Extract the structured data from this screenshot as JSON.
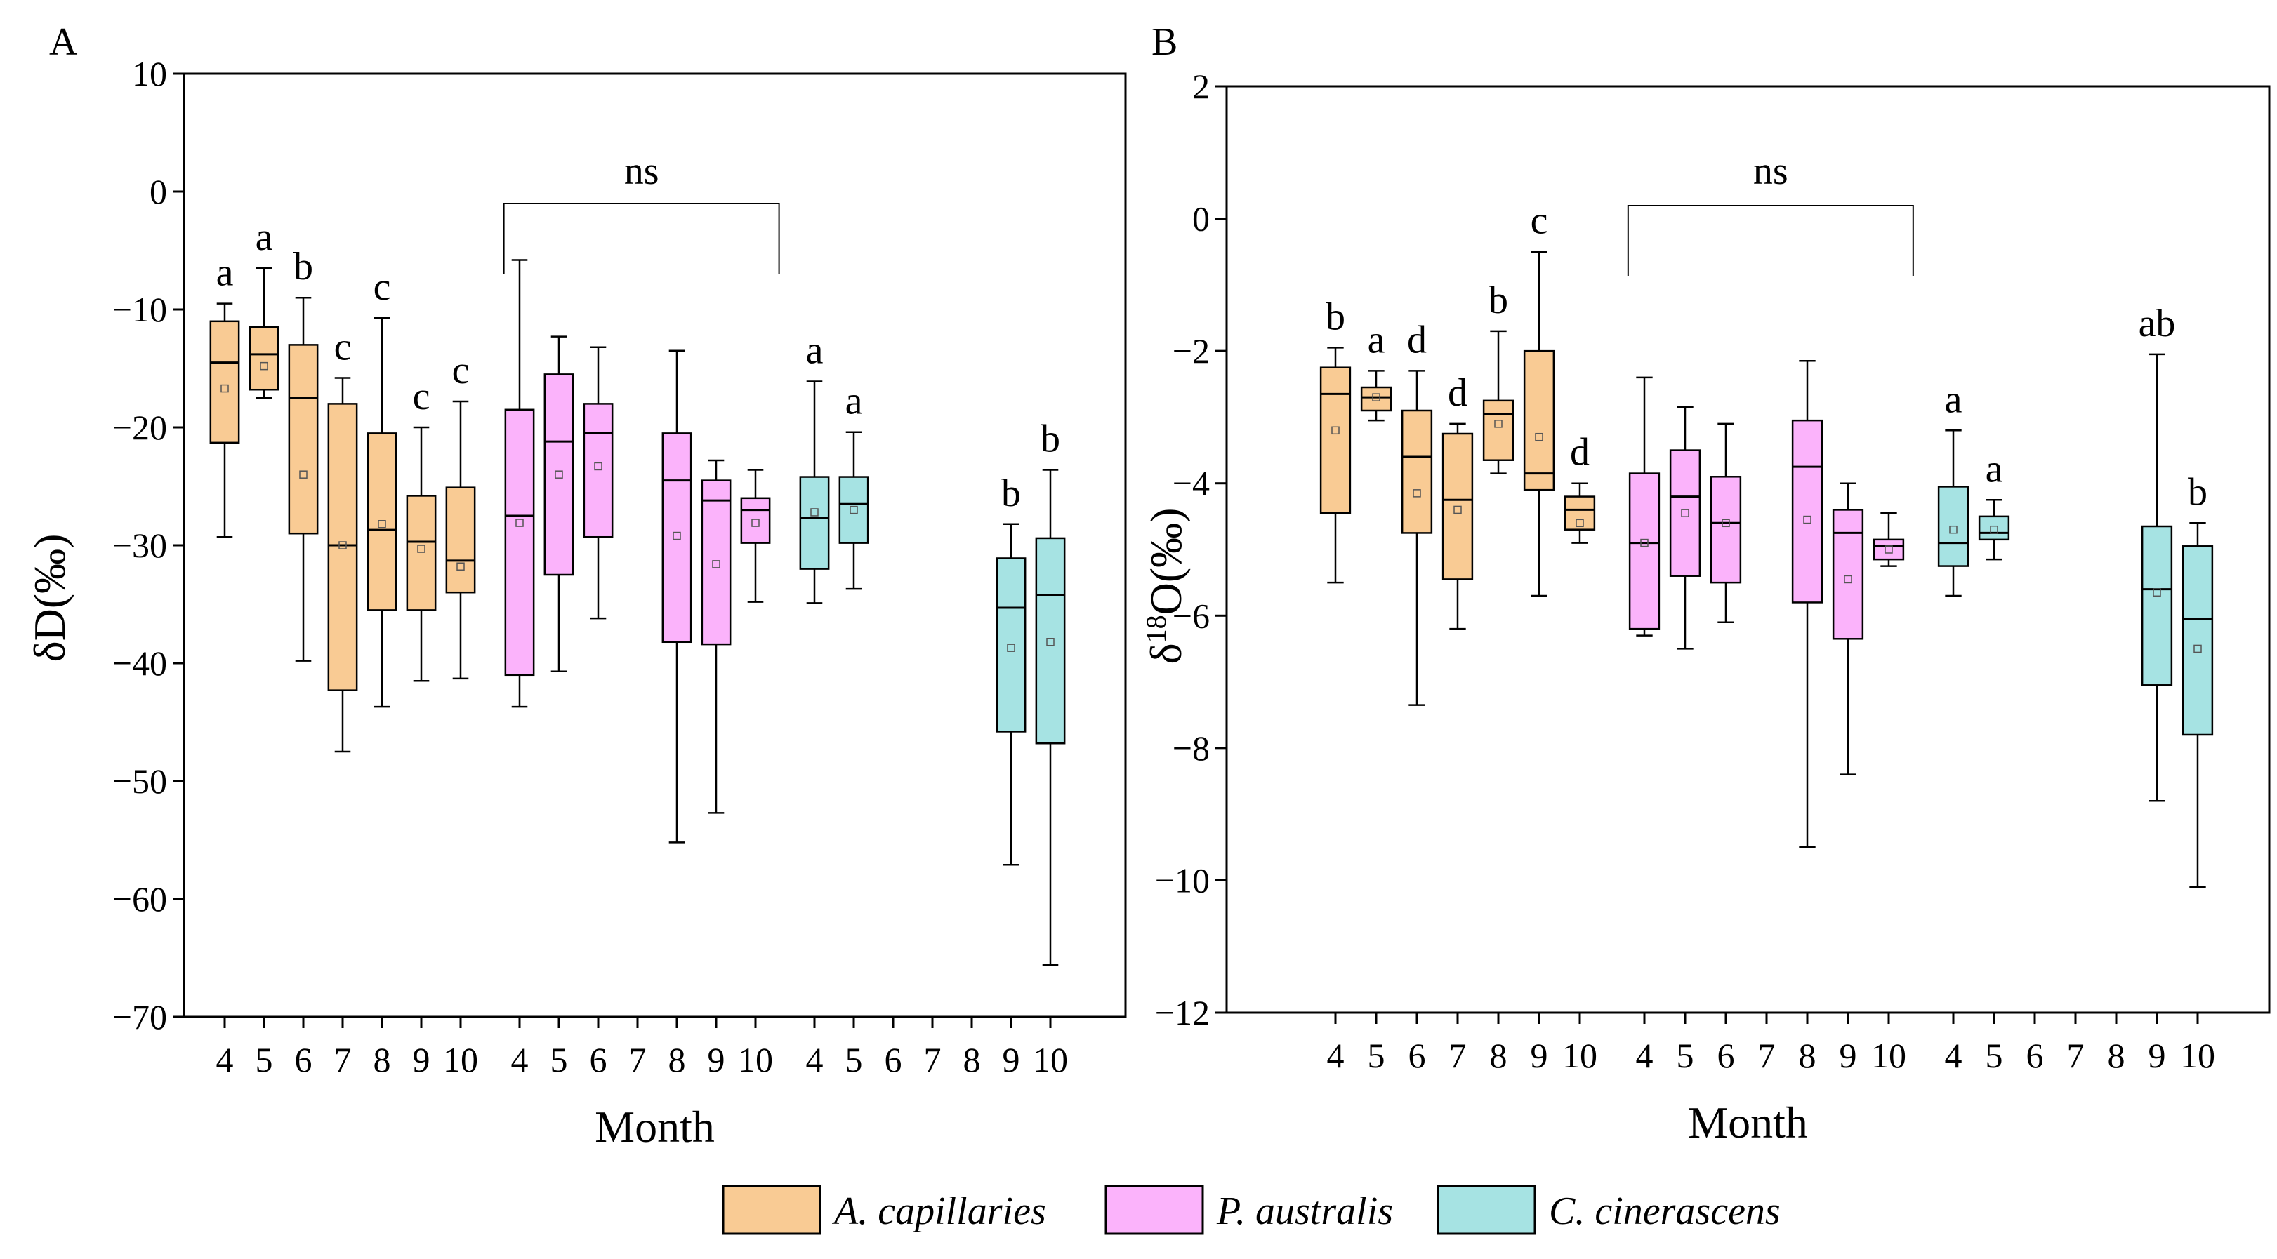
{
  "colors": {
    "A. capillaries": "#F9CB94",
    "P. australis": "#FBB3FB",
    "C. cinerascens": "#A6E3E3"
  },
  "legend": [
    "A. capillaries",
    "P. australis",
    "C. cinerascens"
  ],
  "chart_data": [
    {
      "type": "box",
      "panel": "A",
      "title": "",
      "xlabel": "Month",
      "ylabel": "δD(‰)",
      "ylim": [
        -70,
        10
      ],
      "yticks": [
        10,
        0,
        -10,
        -20,
        -30,
        -40,
        -50,
        -60,
        -70
      ],
      "groups": [
        {
          "species": "A. capillaries",
          "months": [
            "4",
            "5",
            "6",
            "7",
            "8",
            "9",
            "10"
          ],
          "boxes": [
            {
              "month": "4",
              "min": -29.3,
              "q1": -21.3,
              "median": -14.5,
              "q3": -11,
              "max": -9.5,
              "mean": -16.7,
              "letter": "a"
            },
            {
              "month": "5",
              "min": -17.5,
              "q1": -16.8,
              "median": -13.8,
              "q3": -11.5,
              "max": -6.5,
              "mean": -14.8,
              "letter": "a"
            },
            {
              "month": "6",
              "min": -39.8,
              "q1": -29,
              "median": -17.5,
              "q3": -13,
              "max": -9,
              "mean": -24,
              "letter": "b"
            },
            {
              "month": "7",
              "min": -47.5,
              "q1": -42.3,
              "median": -30,
              "q3": -18,
              "max": -15.8,
              "mean": -30,
              "letter": "c"
            },
            {
              "month": "8",
              "min": -43.7,
              "q1": -35.5,
              "median": -28.7,
              "q3": -20.5,
              "max": -10.7,
              "mean": -28.2,
              "letter": "c"
            },
            {
              "month": "9",
              "min": -41.5,
              "q1": -35.5,
              "median": -29.7,
              "q3": -25.8,
              "max": -20,
              "mean": -30.3,
              "letter": "c"
            },
            {
              "month": "10",
              "min": -41.3,
              "q1": -34,
              "median": -31.3,
              "q3": -25.1,
              "max": -17.8,
              "mean": -31.8,
              "letter": "c"
            }
          ]
        },
        {
          "species": "P. australis",
          "months": [
            "4",
            "5",
            "6",
            "7",
            "8",
            "9",
            "10"
          ],
          "bracket": "ns",
          "boxes": [
            {
              "month": "4",
              "min": -43.7,
              "q1": -41,
              "median": -27.5,
              "q3": -18.5,
              "max": -5.8,
              "mean": -28.1
            },
            {
              "month": "5",
              "min": -40.7,
              "q1": -32.5,
              "median": -21.2,
              "q3": -15.5,
              "max": -12.3,
              "mean": -24
            },
            {
              "month": "6",
              "min": -36.2,
              "q1": -29.3,
              "median": -20.5,
              "q3": -18,
              "max": -13.2,
              "mean": -23.3
            },
            {
              "month": "8",
              "min": -55.2,
              "q1": -38.2,
              "median": -24.5,
              "q3": -20.5,
              "max": -13.5,
              "mean": -29.2
            },
            {
              "month": "9",
              "min": -52.7,
              "q1": -38.4,
              "median": -26.2,
              "q3": -24.5,
              "max": -22.8,
              "mean": -31.6
            },
            {
              "month": "10",
              "min": -34.8,
              "q1": -29.8,
              "median": -27,
              "q3": -26,
              "max": -23.6,
              "mean": -28.1
            }
          ]
        },
        {
          "species": "C. cinerascens",
          "months": [
            "4",
            "5",
            "6",
            "7",
            "8",
            "9",
            "10"
          ],
          "boxes": [
            {
              "month": "4",
              "min": -34.9,
              "q1": -32,
              "median": -27.7,
              "q3": -24.2,
              "max": -16.1,
              "mean": -27.2,
              "letter": "a"
            },
            {
              "month": "5",
              "min": -33.7,
              "q1": -29.8,
              "median": -26.5,
              "q3": -24.2,
              "max": -20.4,
              "mean": -27,
              "letter": "a"
            },
            {
              "month": "9",
              "min": -57.1,
              "q1": -45.8,
              "median": -35.3,
              "q3": -31.1,
              "max": -28.2,
              "mean": -38.7,
              "letter": "b"
            },
            {
              "month": "10",
              "min": -65.6,
              "q1": -46.8,
              "median": -34.2,
              "q3": -29.4,
              "max": -23.6,
              "mean": -38.2,
              "letter": "b"
            }
          ]
        }
      ]
    },
    {
      "type": "box",
      "panel": "B",
      "title": "",
      "xlabel": "Month",
      "ylabel": "δ18O(‰)",
      "ylabel_main": "δ",
      "ylabel_sup": "18",
      "ylabel_rest": "O(‰)",
      "ylim": [
        -12,
        2
      ],
      "yticks": [
        2,
        0,
        -2,
        -4,
        -6,
        -8,
        -10,
        -12
      ],
      "groups": [
        {
          "species": "A. capillaries",
          "months": [
            "4",
            "5",
            "6",
            "7",
            "8",
            "9",
            "10"
          ],
          "boxes": [
            {
              "month": "4",
              "min": -5.5,
              "q1": -4.45,
              "median": -2.65,
              "q3": -2.25,
              "max": -1.95,
              "mean": -3.2,
              "letter": "b"
            },
            {
              "month": "5",
              "min": -3.05,
              "q1": -2.9,
              "median": -2.7,
              "q3": -2.55,
              "max": -2.3,
              "mean": -2.7,
              "letter": "a"
            },
            {
              "month": "6",
              "min": -7.35,
              "q1": -4.75,
              "median": -3.6,
              "q3": -2.9,
              "max": -2.3,
              "mean": -4.15,
              "letter": "d"
            },
            {
              "month": "7",
              "min": -6.2,
              "q1": -5.45,
              "median": -4.25,
              "q3": -3.25,
              "max": -3.1,
              "mean": -4.4,
              "letter": "d"
            },
            {
              "month": "8",
              "min": -3.85,
              "q1": -3.65,
              "median": -2.95,
              "q3": -2.75,
              "max": -1.7,
              "mean": -3.1,
              "letter": "b"
            },
            {
              "month": "9",
              "min": -5.7,
              "q1": -4.1,
              "median": -3.85,
              "q3": -2,
              "max": -0.5,
              "mean": -3.3,
              "letter": "c"
            },
            {
              "month": "10",
              "min": -4.9,
              "q1": -4.7,
              "median": -4.4,
              "q3": -4.2,
              "max": -4,
              "mean": -4.6,
              "letter": "d"
            }
          ]
        },
        {
          "species": "P. australis",
          "months": [
            "4",
            "5",
            "6",
            "7",
            "8",
            "9",
            "10"
          ],
          "bracket": "ns",
          "boxes": [
            {
              "month": "4",
              "min": -6.3,
              "q1": -6.2,
              "median": -4.9,
              "q3": -3.85,
              "max": -2.4,
              "mean": -4.9
            },
            {
              "month": "5",
              "min": -6.5,
              "q1": -5.4,
              "median": -4.2,
              "q3": -3.5,
              "max": -2.85,
              "mean": -4.45
            },
            {
              "month": "6",
              "min": -6.1,
              "q1": -5.5,
              "median": -4.6,
              "q3": -3.9,
              "max": -3.1,
              "mean": -4.6
            },
            {
              "month": "8",
              "min": -9.5,
              "q1": -5.8,
              "median": -3.75,
              "q3": -3.05,
              "max": -2.15,
              "mean": -4.55
            },
            {
              "month": "9",
              "min": -8.4,
              "q1": -6.35,
              "median": -4.75,
              "q3": -4.4,
              "max": -4,
              "mean": -5.45
            },
            {
              "month": "10",
              "min": -5.25,
              "q1": -5.15,
              "median": -4.95,
              "q3": -4.85,
              "max": -4.45,
              "mean": -5
            }
          ]
        },
        {
          "species": "C. cinerascens",
          "months": [
            "4",
            "5",
            "6",
            "7",
            "8",
            "9",
            "10"
          ],
          "boxes": [
            {
              "month": "4",
              "min": -5.7,
              "q1": -5.25,
              "median": -4.9,
              "q3": -4.05,
              "max": -3.2,
              "mean": -4.7,
              "letter": "a"
            },
            {
              "month": "5",
              "min": -5.15,
              "q1": -4.85,
              "median": -4.75,
              "q3": -4.5,
              "max": -4.25,
              "mean": -4.7,
              "letter": "a"
            },
            {
              "month": "9",
              "min": -8.8,
              "q1": -7.05,
              "median": -5.6,
              "q3": -4.65,
              "max": -2.05,
              "mean": -5.65,
              "letter": "ab"
            },
            {
              "month": "10",
              "min": -10.1,
              "q1": -7.8,
              "median": -6.05,
              "q3": -4.95,
              "max": -4.6,
              "mean": -6.5,
              "letter": "b"
            }
          ]
        }
      ]
    }
  ]
}
